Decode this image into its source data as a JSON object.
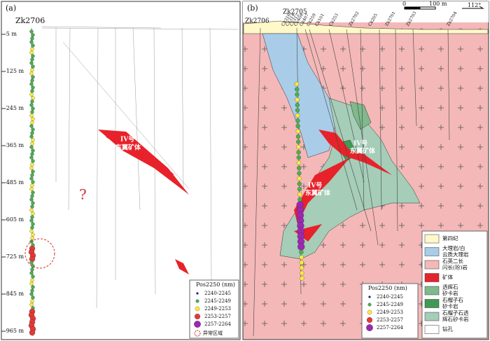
{
  "panel_a": {
    "label": "(a)",
    "drill_hole": "Zk2706",
    "depths": [
      "-5 m",
      "-125 m",
      "-245 m",
      "-365 m",
      "-485 m",
      "-605 m",
      "-725 m",
      "-845 m",
      "-965 m"
    ],
    "ore_label": [
      "IV号",
      "东翼矿体"
    ],
    "question": "?",
    "legend": {
      "title": "Pos2250 (nm)",
      "items": [
        {
          "label": "2240-2245",
          "color": "#1a237e"
        },
        {
          "label": "2245-2249",
          "color": "#4caf50"
        },
        {
          "label": "2249-2253",
          "color": "#ffeb3b"
        },
        {
          "label": "2253-2257",
          "color": "#e53935"
        },
        {
          "label": "2257-2264",
          "color": "#9c27b0"
        }
      ],
      "anomaly": "异常区域"
    }
  },
  "panel_b": {
    "label": "(b)",
    "drill_holes_top": [
      "Zk2706",
      "Zk2705"
    ],
    "drill_holes": [
      "Ck316",
      "Ck314",
      "Ck312",
      "Ck408",
      "Ck407",
      "Ck259",
      "Ck101",
      "Ck253",
      "Zk2702",
      "Ck205",
      "Zk2701",
      "Zk2703",
      "Zk2704"
    ],
    "scale": [
      "0",
      "100 m"
    ],
    "azimuth": "112°",
    "ore_labels": [
      [
        "IV号",
        "东翼矿体"
      ],
      [
        "IV号",
        "东翼矿体"
      ]
    ],
    "legend": {
      "title": "Pos2250 (nm)",
      "items": [
        {
          "label": "2240-2245",
          "color": "#1a237e"
        },
        {
          "label": "2245-2249",
          "color": "#4caf50"
        },
        {
          "label": "2249-2253",
          "color": "#ffeb3b"
        },
        {
          "label": "2253-2257",
          "color": "#e53935"
        },
        {
          "label": "2257-2264",
          "color": "#9c27b0"
        }
      ]
    },
    "lithology": [
      {
        "label": [
          "第四纪"
        ],
        "color": "#fff8c8"
      },
      {
        "label": [
          "大理岩/白",
          "云质大理岩"
        ],
        "color": "#a9cde8"
      },
      {
        "label": [
          "石英二长",
          "闪长(玢)岩"
        ],
        "color": "#f4b8b8"
      },
      {
        "label": [
          "矿体"
        ],
        "color": "#e8222a"
      },
      {
        "label": [
          "透辉石",
          "矽卡岩"
        ],
        "color": "#7fb98c"
      },
      {
        "label": [
          "石榴子石",
          "矽卡岩"
        ],
        "color": "#3f9a55"
      },
      {
        "label": [
          "石榴子石透",
          "辉石矽卡岩"
        ],
        "color": "#a5cdb8"
      },
      {
        "label": [
          "钻孔"
        ],
        "color": "#ffffff"
      }
    ]
  }
}
